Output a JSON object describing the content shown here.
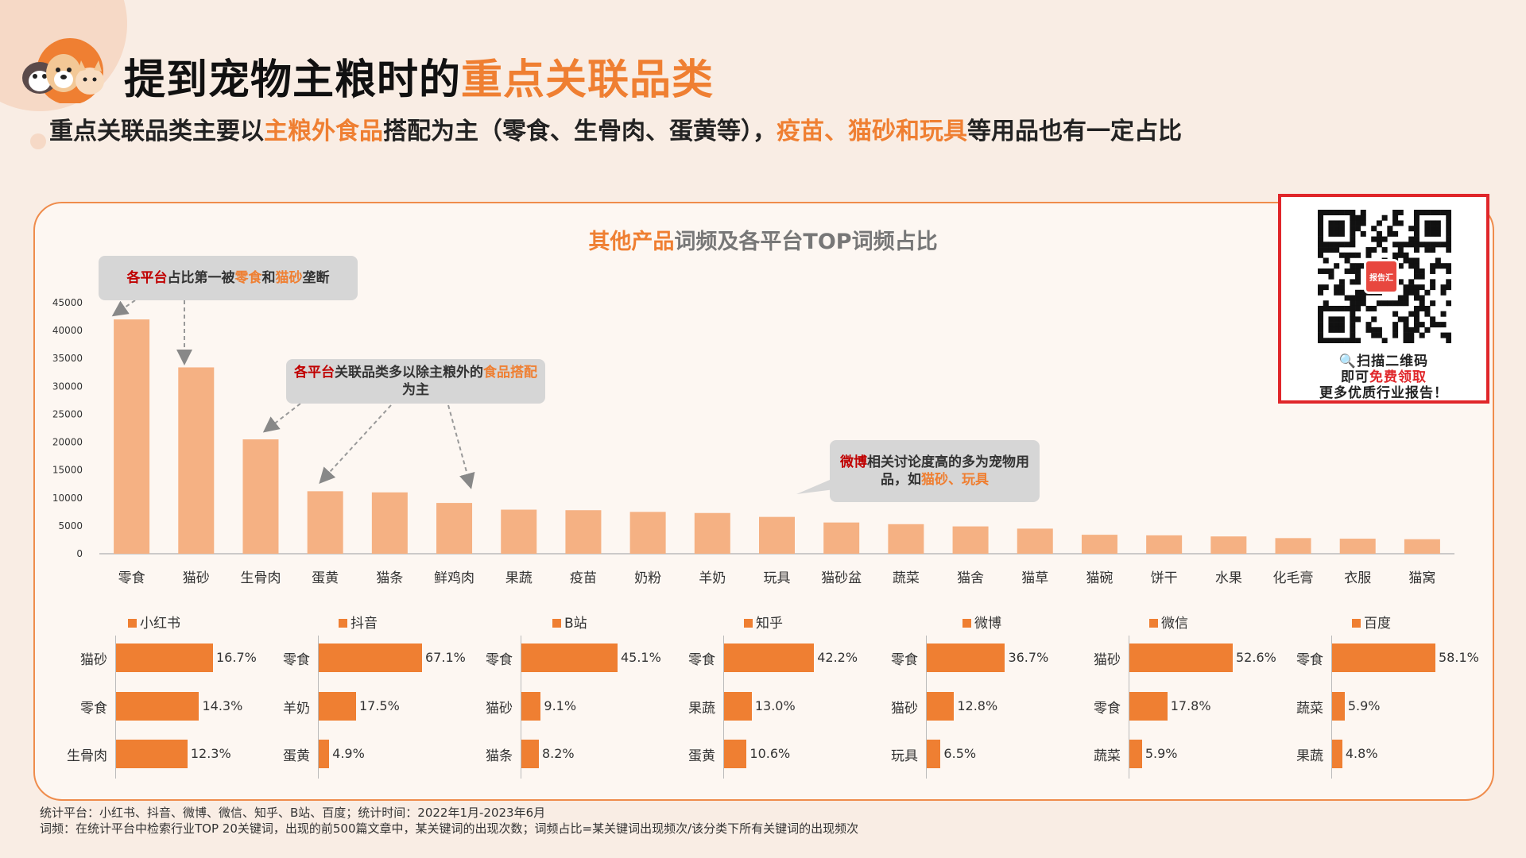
{
  "header": {
    "title_part1": "提到宠物主粮时的",
    "title_part2": "重点关联品类",
    "subtitle_part1": "重点关联品类主要以",
    "subtitle_part2": "主粮外食品",
    "subtitle_part3": "搭配为主（零食、生骨肉、蛋黄等），",
    "subtitle_part4": "疫苗、猫砂和玩具",
    "subtitle_part5": "等用品也有一定占比"
  },
  "chart_title": {
    "part1": "其他产品",
    "part2": "词频及各平台TOP词频占比"
  },
  "callouts": {
    "c1": {
      "red": "各平台",
      "t1": "占比第一被",
      "org1": "零食",
      "t2": "和",
      "org2": "猫砂",
      "t3": "垄断"
    },
    "c2": {
      "red": "各平台",
      "t1": "关联品类多以除主粮外的",
      "org1": "食品搭配",
      "t2": "为主"
    },
    "c3": {
      "red": "微博",
      "t1": "相关讨论度高的多为宠物用品，如",
      "org1": "猫砂、玩具"
    }
  },
  "chart_data": [
    {
      "type": "bar",
      "categories": [
        "零食",
        "猫砂",
        "生骨肉",
        "蛋黄",
        "猫条",
        "鲜鸡肉",
        "果蔬",
        "疫苗",
        "奶粉",
        "羊奶",
        "玩具",
        "猫砂盆",
        "蔬菜",
        "猫舍",
        "猫草",
        "猫碗",
        "饼干",
        "水果",
        "化毛膏",
        "衣服",
        "猫窝"
      ],
      "values": [
        42000,
        33400,
        20500,
        11200,
        11000,
        9100,
        7900,
        7800,
        7500,
        7300,
        6600,
        5600,
        5300,
        4900,
        4500,
        3400,
        3300,
        3100,
        2800,
        2700,
        2600
      ],
      "y_ticks": [
        "0",
        "5000",
        "10000",
        "15000",
        "20000",
        "25000",
        "30000",
        "35000",
        "40000",
        "45000"
      ],
      "ylim": [
        0,
        45000
      ],
      "color": "#f5b183"
    },
    {
      "type": "bar",
      "orientation": "horizontal",
      "series": [
        {
          "name": "小红书",
          "values": [
            16.7,
            14.3,
            12.3
          ]
        }
      ],
      "categories": [
        "猫砂",
        "零食",
        "生骨肉"
      ],
      "labels": [
        "16.7%",
        "14.3%",
        "12.3%"
      ]
    },
    {
      "type": "bar",
      "orientation": "horizontal",
      "series": [
        {
          "name": "抖音",
          "values": [
            67.1,
            17.5,
            4.9
          ]
        }
      ],
      "categories": [
        "零食",
        "羊奶",
        "蛋黄"
      ],
      "labels": [
        "67.1%",
        "17.5%",
        "4.9%"
      ]
    },
    {
      "type": "bar",
      "orientation": "horizontal",
      "series": [
        {
          "name": "B站",
          "values": [
            45.1,
            9.1,
            8.2
          ]
        }
      ],
      "categories": [
        "零食",
        "猫砂",
        "猫条"
      ],
      "labels": [
        "45.1%",
        "9.1%",
        "8.2%"
      ]
    },
    {
      "type": "bar",
      "orientation": "horizontal",
      "series": [
        {
          "name": "知乎",
          "values": [
            42.2,
            13.0,
            10.6
          ]
        }
      ],
      "categories": [
        "零食",
        "果蔬",
        "蛋黄"
      ],
      "labels": [
        "42.2%",
        "13.0%",
        "10.6%"
      ]
    },
    {
      "type": "bar",
      "orientation": "horizontal",
      "series": [
        {
          "name": "微博",
          "values": [
            36.7,
            12.8,
            6.5
          ]
        }
      ],
      "categories": [
        "零食",
        "猫砂",
        "玩具"
      ],
      "labels": [
        "36.7%",
        "12.8%",
        "6.5%"
      ]
    },
    {
      "type": "bar",
      "orientation": "horizontal",
      "series": [
        {
          "name": "微信",
          "values": [
            52.6,
            17.8,
            5.9
          ]
        }
      ],
      "categories": [
        "猫砂",
        "零食",
        "蔬菜"
      ],
      "labels": [
        "52.6%",
        "17.8%",
        "5.9%"
      ]
    },
    {
      "type": "bar",
      "orientation": "horizontal",
      "series": [
        {
          "name": "百度",
          "values": [
            58.1,
            5.9,
            4.8
          ]
        }
      ],
      "categories": [
        "零食",
        "蔬菜",
        "果蔬"
      ],
      "labels": [
        "58.1%",
        "5.9%",
        "4.8%"
      ]
    }
  ],
  "qr": {
    "badge": "报告汇",
    "line1": "扫描二维码",
    "line2_part1": "即可",
    "line2_part2": "免费领取",
    "line3": "更多优质行业报告！"
  },
  "footnotes": {
    "line1": "统计平台：小红书、抖音、微博、微信、知乎、B站、百度；统计时间：2022年1月-2023年6月",
    "line2": "词频：在统计平台中检索行业TOP 20关键词，出现的前500篇文章中，某关键词的出现次数；词频占比=某关键词出现频次/该分类下所有关键词的出现频次"
  },
  "colors": {
    "accent": "#ef7f32",
    "main_bar": "#f5b183",
    "highlight_red": "#c00000",
    "qr_border": "#e0262a"
  },
  "icons": [
    "pet-logo-icon",
    "search-icon",
    "qr-code-icon"
  ]
}
